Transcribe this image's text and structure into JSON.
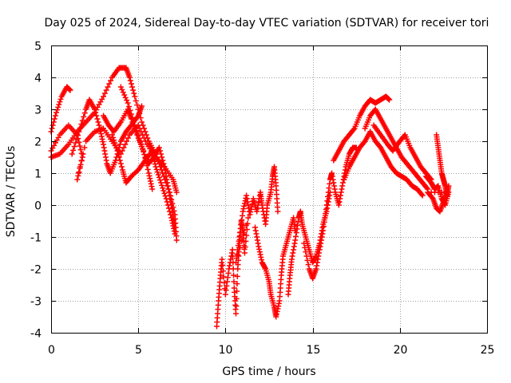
{
  "chart_data": {
    "type": "scatter",
    "title": "Day 025 of 2024, Sidereal Day-to-day VTEC variation (SDTVAR) for receiver tori",
    "xlabel": "GPS time / hours",
    "ylabel": "SDTVAR / TECUs",
    "xlim": [
      0,
      25
    ],
    "ylim": [
      -4,
      5
    ],
    "xticks": [
      "0",
      "5",
      "10",
      "15",
      "20",
      "25"
    ],
    "yticks": [
      "-4",
      "-3",
      "-2",
      "-1",
      "0",
      "1",
      "2",
      "3",
      "4",
      "5"
    ],
    "grid": true,
    "marker": "+",
    "series": [
      {
        "name": "SDTVAR",
        "color": "#ff0000",
        "points": [
          [
            0.0,
            2.3
          ],
          [
            0.3,
            2.9
          ],
          [
            0.6,
            3.4
          ],
          [
            0.9,
            3.7
          ],
          [
            1.1,
            3.6
          ],
          [
            0.0,
            1.5
          ],
          [
            0.5,
            1.6
          ],
          [
            1.0,
            1.9
          ],
          [
            1.5,
            2.3
          ],
          [
            2.0,
            2.6
          ],
          [
            2.5,
            2.9
          ],
          [
            3.0,
            3.4
          ],
          [
            3.5,
            4.0
          ],
          [
            3.9,
            4.3
          ],
          [
            4.3,
            4.3
          ],
          [
            4.5,
            4.0
          ],
          [
            4.8,
            3.4
          ],
          [
            5.2,
            2.6
          ],
          [
            5.6,
            2.0
          ],
          [
            6.0,
            1.6
          ],
          [
            6.4,
            1.0
          ],
          [
            6.8,
            0.4
          ],
          [
            7.1,
            -0.3
          ],
          [
            7.2,
            -1.1
          ],
          [
            0.0,
            1.7
          ],
          [
            0.5,
            2.2
          ],
          [
            1.0,
            2.5
          ],
          [
            1.5,
            2.2
          ],
          [
            1.8,
            1.5
          ],
          [
            1.5,
            0.8
          ],
          [
            2.0,
            2.0
          ],
          [
            2.5,
            2.3
          ],
          [
            3.0,
            2.4
          ],
          [
            3.5,
            2.0
          ],
          [
            4.0,
            1.6
          ],
          [
            4.5,
            2.2
          ],
          [
            5.0,
            2.5
          ],
          [
            5.5,
            1.9
          ],
          [
            6.0,
            1.5
          ],
          [
            6.5,
            1.2
          ],
          [
            7.0,
            0.8
          ],
          [
            7.2,
            0.4
          ],
          [
            1.2,
            1.6
          ],
          [
            1.6,
            2.3
          ],
          [
            2.0,
            3.0
          ],
          [
            2.2,
            3.3
          ],
          [
            2.5,
            3.0
          ],
          [
            2.8,
            2.4
          ],
          [
            3.0,
            1.9
          ],
          [
            3.2,
            1.3
          ],
          [
            3.4,
            1.0
          ],
          [
            3.7,
            1.4
          ],
          [
            4.0,
            2.0
          ],
          [
            4.3,
            2.3
          ],
          [
            4.6,
            2.5
          ],
          [
            5.0,
            2.8
          ],
          [
            5.2,
            3.1
          ],
          [
            4.0,
            3.7
          ],
          [
            4.4,
            3.2
          ],
          [
            4.8,
            2.5
          ],
          [
            5.1,
            2.0
          ],
          [
            5.4,
            1.5
          ],
          [
            5.6,
            1.3
          ],
          [
            5.9,
            1.5
          ],
          [
            6.2,
            1.8
          ],
          [
            6.5,
            1.2
          ],
          [
            6.7,
            0.6
          ],
          [
            6.9,
            0.0
          ],
          [
            7.1,
            -0.7
          ],
          [
            3.5,
            2.2
          ],
          [
            3.8,
            1.7
          ],
          [
            4.1,
            1.1
          ],
          [
            4.3,
            0.7
          ],
          [
            4.6,
            0.9
          ],
          [
            5.0,
            1.1
          ],
          [
            5.4,
            1.4
          ],
          [
            5.8,
            1.7
          ],
          [
            6.0,
            1.2
          ],
          [
            6.3,
            0.7
          ],
          [
            6.6,
            0.2
          ],
          [
            6.9,
            -0.4
          ],
          [
            7.1,
            -0.9
          ],
          [
            3.0,
            2.8
          ],
          [
            3.3,
            2.5
          ],
          [
            3.6,
            2.3
          ],
          [
            4.0,
            2.6
          ],
          [
            4.4,
            3.0
          ],
          [
            4.6,
            2.7
          ],
          [
            5.0,
            2.1
          ],
          [
            5.3,
            1.7
          ],
          [
            5.6,
            1.0
          ],
          [
            5.8,
            0.5
          ],
          [
            9.5,
            -3.8
          ],
          [
            9.6,
            -3.0
          ],
          [
            9.7,
            -2.3
          ],
          [
            9.8,
            -1.7
          ],
          [
            10.0,
            -2.8
          ],
          [
            10.2,
            -2.0
          ],
          [
            10.4,
            -1.4
          ],
          [
            10.5,
            -2.6
          ],
          [
            10.6,
            -3.4
          ],
          [
            10.7,
            -2.0
          ],
          [
            10.8,
            -1.2
          ],
          [
            10.9,
            -0.5
          ],
          [
            11.0,
            -0.8
          ],
          [
            11.1,
            -1.5
          ],
          [
            11.3,
            -0.4
          ],
          [
            10.6,
            -1.8
          ],
          [
            10.8,
            -1.0
          ],
          [
            11.0,
            -0.2
          ],
          [
            11.2,
            0.3
          ],
          [
            11.4,
            -0.3
          ],
          [
            11.6,
            0.2
          ],
          [
            11.8,
            -0.2
          ],
          [
            12.0,
            0.4
          ],
          [
            12.1,
            0.0
          ],
          [
            12.3,
            -0.6
          ],
          [
            12.4,
            0.0
          ],
          [
            12.6,
            0.4
          ],
          [
            12.7,
            0.9
          ],
          [
            12.8,
            1.2
          ],
          [
            12.9,
            0.6
          ],
          [
            13.0,
            -0.2
          ],
          [
            11.7,
            -0.7
          ],
          [
            11.9,
            -1.3
          ],
          [
            12.1,
            -1.8
          ],
          [
            12.3,
            -2.0
          ],
          [
            12.5,
            -2.4
          ],
          [
            12.6,
            -2.8
          ],
          [
            12.8,
            -3.2
          ],
          [
            12.9,
            -3.5
          ],
          [
            13.1,
            -3.0
          ],
          [
            13.2,
            -2.2
          ],
          [
            13.3,
            -1.6
          ],
          [
            13.5,
            -1.2
          ],
          [
            13.7,
            -0.8
          ],
          [
            13.9,
            -0.4
          ],
          [
            14.0,
            -0.8
          ],
          [
            13.6,
            -2.8
          ],
          [
            13.7,
            -2.2
          ],
          [
            13.8,
            -1.7
          ],
          [
            14.0,
            -1.1
          ],
          [
            14.2,
            -0.4
          ],
          [
            14.3,
            -0.2
          ],
          [
            14.4,
            -0.6
          ],
          [
            14.6,
            -1.0
          ],
          [
            14.8,
            -1.4
          ],
          [
            15.0,
            -1.8
          ],
          [
            15.2,
            -1.6
          ],
          [
            15.4,
            -1.2
          ],
          [
            15.6,
            -0.6
          ],
          [
            15.8,
            -0.2
          ],
          [
            16.0,
            0.4
          ],
          [
            14.5,
            -1.2
          ],
          [
            14.8,
            -2.0
          ],
          [
            15.0,
            -2.3
          ],
          [
            15.2,
            -2.0
          ],
          [
            15.4,
            -1.4
          ],
          [
            15.6,
            -0.8
          ],
          [
            15.8,
            0.0
          ],
          [
            16.0,
            0.8
          ],
          [
            16.1,
            1.0
          ],
          [
            16.3,
            0.4
          ],
          [
            16.5,
            0.0
          ],
          [
            16.7,
            0.6
          ],
          [
            16.9,
            1.2
          ],
          [
            17.1,
            1.6
          ],
          [
            17.3,
            1.8
          ],
          [
            17.5,
            1.8
          ],
          [
            16.2,
            1.4
          ],
          [
            16.5,
            1.7
          ],
          [
            16.8,
            2.0
          ],
          [
            17.1,
            2.2
          ],
          [
            17.4,
            2.4
          ],
          [
            17.7,
            2.8
          ],
          [
            18.0,
            3.1
          ],
          [
            18.3,
            3.3
          ],
          [
            18.6,
            3.2
          ],
          [
            18.9,
            3.3
          ],
          [
            19.2,
            3.4
          ],
          [
            19.4,
            3.3
          ],
          [
            16.8,
            0.8
          ],
          [
            17.1,
            1.2
          ],
          [
            17.4,
            1.5
          ],
          [
            17.7,
            1.8
          ],
          [
            18.0,
            2.0
          ],
          [
            18.3,
            2.3
          ],
          [
            18.6,
            2.0
          ],
          [
            18.9,
            1.8
          ],
          [
            19.2,
            1.5
          ],
          [
            19.5,
            1.2
          ],
          [
            19.8,
            1.0
          ],
          [
            20.1,
            0.9
          ],
          [
            20.4,
            0.8
          ],
          [
            20.7,
            0.6
          ],
          [
            21.0,
            0.5
          ],
          [
            21.3,
            0.3
          ],
          [
            18.0,
            2.4
          ],
          [
            18.3,
            2.8
          ],
          [
            18.6,
            3.0
          ],
          [
            18.9,
            2.7
          ],
          [
            19.2,
            2.4
          ],
          [
            19.5,
            2.1
          ],
          [
            19.8,
            1.8
          ],
          [
            20.1,
            1.5
          ],
          [
            20.4,
            1.3
          ],
          [
            20.7,
            1.1
          ],
          [
            21.0,
            0.9
          ],
          [
            21.3,
            0.7
          ],
          [
            21.6,
            0.5
          ],
          [
            18.5,
            2.5
          ],
          [
            18.9,
            2.2
          ],
          [
            19.3,
            1.9
          ],
          [
            19.6,
            1.7
          ],
          [
            20.0,
            2.0
          ],
          [
            20.3,
            2.2
          ],
          [
            20.6,
            1.8
          ],
          [
            20.9,
            1.5
          ],
          [
            21.2,
            1.2
          ],
          [
            21.5,
            1.0
          ],
          [
            21.8,
            0.8
          ],
          [
            21.5,
            0.9
          ],
          [
            21.8,
            0.7
          ],
          [
            22.0,
            0.5
          ],
          [
            22.2,
            0.6
          ],
          [
            22.4,
            0.2
          ],
          [
            22.6,
            0.0
          ],
          [
            22.8,
            0.4
          ],
          [
            21.6,
            0.4
          ],
          [
            21.9,
            0.2
          ],
          [
            22.1,
            -0.1
          ],
          [
            22.3,
            -0.2
          ],
          [
            22.5,
            0.1
          ],
          [
            22.7,
            0.5
          ],
          [
            22.1,
            2.2
          ],
          [
            22.2,
            1.8
          ],
          [
            22.3,
            1.4
          ],
          [
            22.4,
            1.0
          ],
          [
            22.5,
            0.8
          ],
          [
            22.6,
            0.6
          ],
          [
            22.7,
            0.3
          ],
          [
            22.8,
            0.6
          ]
        ]
      }
    ]
  }
}
